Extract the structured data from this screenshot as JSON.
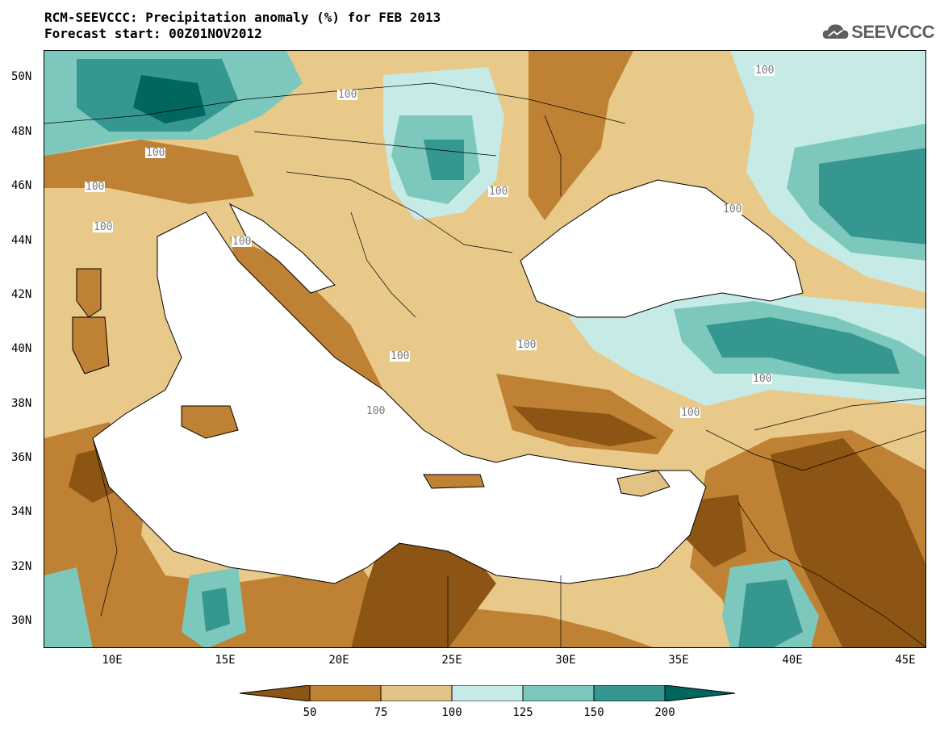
{
  "title": {
    "line1": "RCM-SEEVCCC: Precipitation anomaly (%) for FEB 2013",
    "line2": "Forecast start: 00Z01NOV2012"
  },
  "logo": {
    "text": "SEEVCCC",
    "icon": "cloud-icon"
  },
  "map": {
    "lat_labels": [
      "50N",
      "48N",
      "46N",
      "44N",
      "42N",
      "40N",
      "38N",
      "36N",
      "34N",
      "32N",
      "30N"
    ],
    "lon_labels": [
      "10E",
      "15E",
      "20E",
      "25E",
      "30E",
      "35E",
      "40E",
      "45E"
    ],
    "contour_labels": [
      "100",
      "100",
      "100",
      "100",
      "100",
      "100",
      "100",
      "100",
      "100",
      "100",
      "100",
      "100",
      "100"
    ]
  },
  "colorbar": {
    "labels": [
      "50",
      "75",
      "100",
      "125",
      "150",
      "200"
    ],
    "colors": [
      "#8c5514",
      "#bf8133",
      "#e2c285",
      "#c6ebe6",
      "#7cc8bc",
      "#35978f",
      "#01665e"
    ]
  }
}
